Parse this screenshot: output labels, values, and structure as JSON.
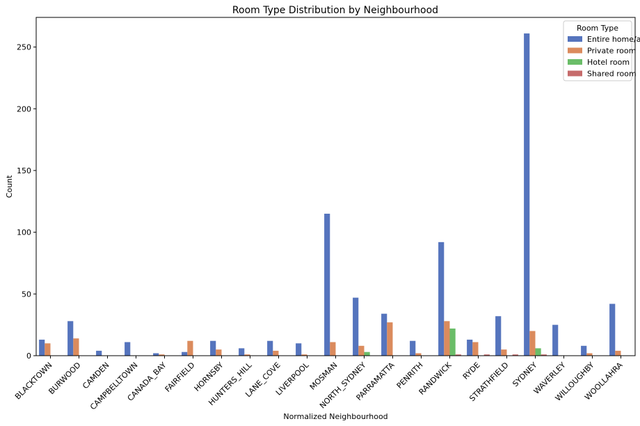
{
  "chart_data": {
    "type": "bar",
    "title": "Room Type Distribution by Neighbourhood",
    "xlabel": "Normalized Neighbourhood",
    "ylabel": "Count",
    "ylim": [
      0,
      274
    ],
    "yticks": [
      0,
      50,
      100,
      150,
      200,
      250
    ],
    "legend_title": "Room Type",
    "legend_position": "top-right",
    "categories": [
      "BLACKTOWN",
      "BURWOOD",
      "CAMDEN",
      "CAMPBELLTOWN",
      "CANADA_BAY",
      "FAIRFIELD",
      "HORNSBY",
      "HUNTERS_HILL",
      "LANE_COVE",
      "LIVERPOOL",
      "MOSMAN",
      "NORTH_SYDNEY",
      "PARRAMATTA",
      "PENRITH",
      "RANDWICK",
      "RYDE",
      "STRATHFIELD",
      "SYDNEY",
      "WAVERLEY",
      "WILLOUGHBY",
      "WOOLLAHRA"
    ],
    "series": [
      {
        "name": "Entire home/apt",
        "color": "#5574bd",
        "values": [
          13,
          28,
          4,
          11,
          2,
          3,
          12,
          6,
          12,
          10,
          115,
          47,
          34,
          12,
          92,
          13,
          32,
          261,
          25,
          8,
          42
        ]
      },
      {
        "name": "Private room",
        "color": "#db8b5d",
        "values": [
          10,
          14,
          0,
          0,
          1,
          12,
          5,
          1,
          4,
          1,
          11,
          8,
          27,
          2,
          28,
          11,
          5,
          20,
          0,
          2,
          4
        ]
      },
      {
        "name": "Hotel room",
        "color": "#6abd68",
        "values": [
          0,
          0,
          0,
          0,
          0,
          0,
          0,
          0,
          0,
          0,
          0,
          3,
          0,
          0,
          22,
          0,
          0,
          6,
          0,
          0,
          0
        ]
      },
      {
        "name": "Shared room",
        "color": "#c66b6b",
        "values": [
          0,
          0,
          0,
          0,
          0,
          0,
          0,
          0,
          0,
          0,
          0,
          0,
          0,
          0,
          1,
          1,
          1,
          1,
          0,
          0,
          0
        ]
      }
    ]
  }
}
